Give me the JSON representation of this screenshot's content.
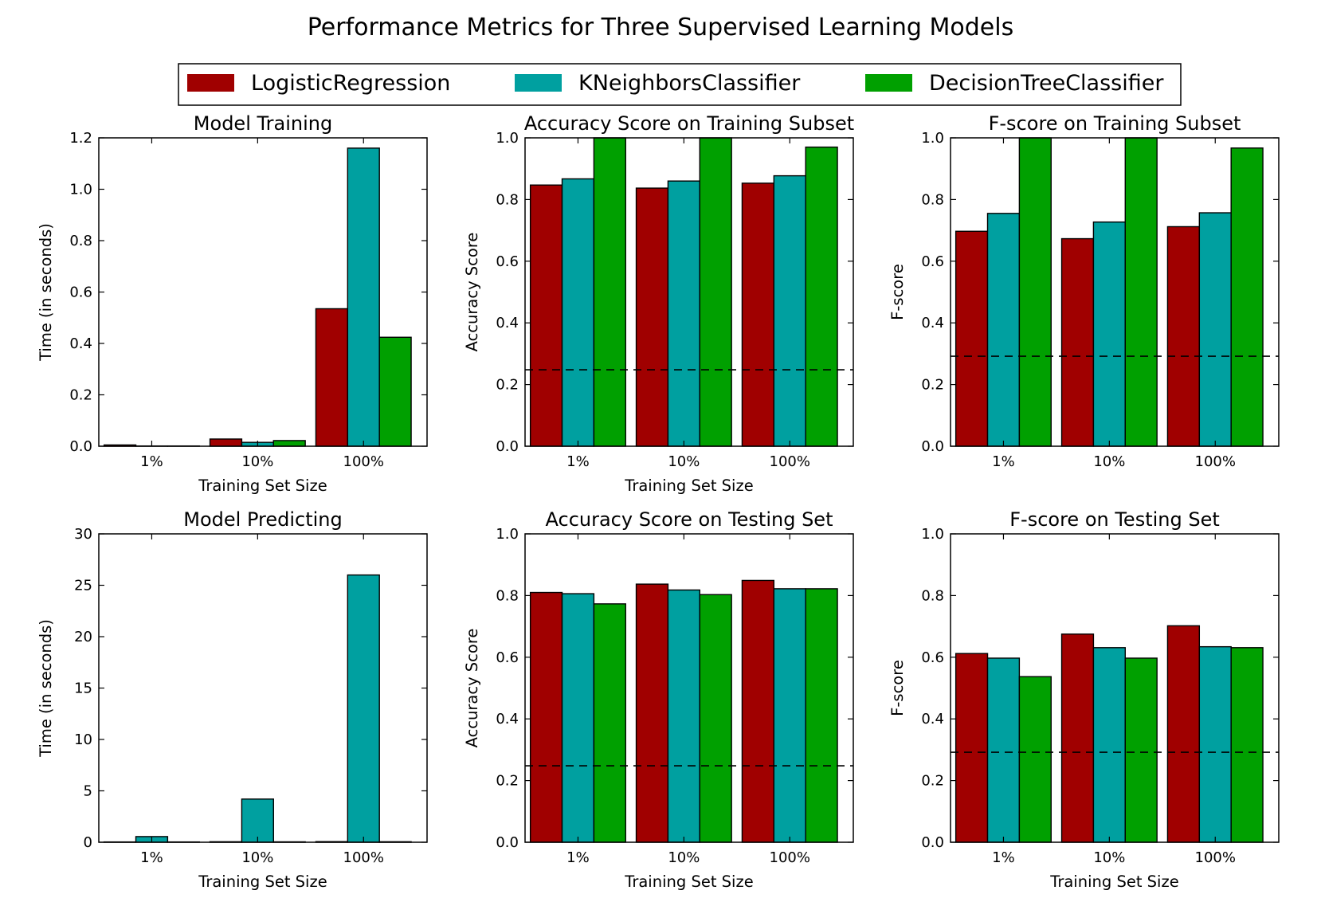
{
  "title": "Performance Metrics for Three Supervised Learning Models",
  "legend": {
    "placement": "top-center",
    "entries": [
      {
        "label": "LogisticRegression",
        "color": "#A00000"
      },
      {
        "label": "KNeighborsClassifier",
        "color": "#00A0A0"
      },
      {
        "label": "DecisionTreeClassifier",
        "color": "#00A000"
      }
    ]
  },
  "chart_data": [
    {
      "type": "bar",
      "title": "Model Training",
      "xlabel": "Training Set Size",
      "ylabel": "Time (in seconds)",
      "categories": [
        "1%",
        "10%",
        "100%"
      ],
      "ylim": [
        0,
        1.2
      ],
      "yticks": [
        "0.0",
        "0.2",
        "0.4",
        "0.6",
        "0.8",
        "1.0",
        "1.2"
      ],
      "baseline": null,
      "series": [
        {
          "name": "LogisticRegression",
          "values": [
            0.005,
            0.028,
            0.535
          ]
        },
        {
          "name": "KNeighborsClassifier",
          "values": [
            0.001,
            0.015,
            1.16
          ]
        },
        {
          "name": "DecisionTreeClassifier",
          "values": [
            0.001,
            0.022,
            0.424
          ]
        }
      ]
    },
    {
      "type": "bar",
      "title": "Accuracy Score on Training Subset",
      "xlabel": "Training Set Size",
      "ylabel": "Accuracy Score",
      "categories": [
        "1%",
        "10%",
        "100%"
      ],
      "ylim": [
        0,
        1.0
      ],
      "yticks": [
        "0.0",
        "0.2",
        "0.4",
        "0.6",
        "0.8",
        "1.0"
      ],
      "baseline": 0.2478,
      "series": [
        {
          "name": "LogisticRegression",
          "values": [
            0.847,
            0.837,
            0.853
          ]
        },
        {
          "name": "KNeighborsClassifier",
          "values": [
            0.867,
            0.86,
            0.877
          ]
        },
        {
          "name": "DecisionTreeClassifier",
          "values": [
            1.0,
            1.0,
            0.97
          ]
        }
      ]
    },
    {
      "type": "bar",
      "title": "F-score on Training Subset",
      "xlabel": "",
      "ylabel": "F-score",
      "categories": [
        "1%",
        "10%",
        "100%"
      ],
      "ylim": [
        0,
        1.0
      ],
      "yticks": [
        "0.0",
        "0.2",
        "0.4",
        "0.6",
        "0.8",
        "1.0"
      ],
      "baseline": 0.2917,
      "series": [
        {
          "name": "LogisticRegression",
          "values": [
            0.697,
            0.673,
            0.712
          ]
        },
        {
          "name": "KNeighborsClassifier",
          "values": [
            0.755,
            0.727,
            0.757
          ]
        },
        {
          "name": "DecisionTreeClassifier",
          "values": [
            1.0,
            1.0,
            0.967
          ]
        }
      ]
    },
    {
      "type": "bar",
      "title": "Model Predicting",
      "xlabel": "Training Set Size",
      "ylabel": "Time (in seconds)",
      "categories": [
        "1%",
        "10%",
        "100%"
      ],
      "ylim": [
        0,
        30
      ],
      "yticks": [
        "0",
        "5",
        "10",
        "15",
        "20",
        "25",
        "30"
      ],
      "baseline": null,
      "series": [
        {
          "name": "LogisticRegression",
          "values": [
            0.03,
            0.05,
            0.06
          ]
        },
        {
          "name": "KNeighborsClassifier",
          "values": [
            0.55,
            4.2,
            26.0
          ]
        },
        {
          "name": "DecisionTreeClassifier",
          "values": [
            0.03,
            0.04,
            0.05
          ]
        }
      ]
    },
    {
      "type": "bar",
      "title": "Accuracy Score on Testing Set",
      "xlabel": "Training Set Size",
      "ylabel": "Accuracy Score",
      "categories": [
        "1%",
        "10%",
        "100%"
      ],
      "ylim": [
        0,
        1.0
      ],
      "yticks": [
        "0.0",
        "0.2",
        "0.4",
        "0.6",
        "0.8",
        "1.0"
      ],
      "baseline": 0.2478,
      "series": [
        {
          "name": "LogisticRegression",
          "values": [
            0.81,
            0.837,
            0.849
          ]
        },
        {
          "name": "KNeighborsClassifier",
          "values": [
            0.806,
            0.818,
            0.822
          ]
        },
        {
          "name": "DecisionTreeClassifier",
          "values": [
            0.773,
            0.803,
            0.822
          ]
        }
      ]
    },
    {
      "type": "bar",
      "title": "F-score on Testing Set",
      "xlabel": "Training Set Size",
      "ylabel": "F-score",
      "categories": [
        "1%",
        "10%",
        "100%"
      ],
      "ylim": [
        0,
        1.0
      ],
      "yticks": [
        "0.0",
        "0.2",
        "0.4",
        "0.6",
        "0.8",
        "1.0"
      ],
      "baseline": 0.2917,
      "series": [
        {
          "name": "LogisticRegression",
          "values": [
            0.612,
            0.675,
            0.702
          ]
        },
        {
          "name": "KNeighborsClassifier",
          "values": [
            0.597,
            0.631,
            0.634
          ]
        },
        {
          "name": "DecisionTreeClassifier",
          "values": [
            0.537,
            0.597,
            0.631
          ]
        }
      ]
    }
  ]
}
